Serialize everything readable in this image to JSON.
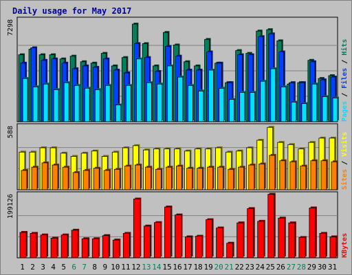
{
  "chart_data": [
    {
      "type": "bar",
      "title": "Daily usage for May 2017",
      "ylabel_parts": [
        {
          "text": "Pages",
          "color": "#00e0ff"
        },
        {
          "text": " / ",
          "color": "#000000"
        },
        {
          "text": "Files",
          "color": "#0040ff"
        },
        {
          "text": " / ",
          "color": "#000000"
        },
        {
          "text": "Hits",
          "color": "#00805c"
        }
      ],
      "ymax_label": "7298",
      "ylim": [
        0,
        7298
      ],
      "categories": [
        "1",
        "2",
        "3",
        "4",
        "5",
        "6",
        "7",
        "8",
        "9",
        "10",
        "11",
        "12",
        "13",
        "14",
        "15",
        "16",
        "17",
        "18",
        "19",
        "20",
        "21",
        "22",
        "23",
        "24",
        "25",
        "26",
        "27",
        "28",
        "29",
        "30",
        "31"
      ],
      "weekend_days": [
        "6",
        "7",
        "13",
        "14",
        "20",
        "21",
        "27",
        "28"
      ],
      "series": [
        {
          "name": "Hits",
          "color": "#00805c",
          "values": [
            4800,
            5200,
            4800,
            4800,
            4500,
            4700,
            4300,
            4200,
            4900,
            4000,
            4600,
            7000,
            5600,
            4000,
            6400,
            5500,
            4300,
            4000,
            5900,
            4200,
            2800,
            5100,
            4900,
            6500,
            6600,
            5800,
            2700,
            2800,
            4400,
            3100,
            3300
          ]
        },
        {
          "name": "Files",
          "color": "#0040ff",
          "values": [
            4200,
            5300,
            4400,
            4500,
            4200,
            3800,
            4000,
            3900,
            4500,
            3700,
            3500,
            5600,
            4600,
            3600,
            5400,
            4700,
            3700,
            3700,
            5000,
            4200,
            2800,
            4800,
            4800,
            6100,
            6300,
            5000,
            2800,
            2800,
            4300,
            3000,
            3200
          ]
        },
        {
          "name": "Pages",
          "color": "#00e0ff",
          "values": [
            3100,
            2500,
            2700,
            2300,
            2800,
            2600,
            2400,
            2300,
            2600,
            1200,
            2600,
            4500,
            2800,
            2700,
            4000,
            3200,
            2600,
            2200,
            3700,
            2400,
            1600,
            2100,
            2100,
            2900,
            3800,
            2500,
            1400,
            1300,
            2700,
            1800,
            1700
          ]
        }
      ]
    },
    {
      "type": "bar",
      "ylabel_parts": [
        {
          "text": "Sites",
          "color": "#ff8000"
        },
        {
          "text": " / ",
          "color": "#000000"
        },
        {
          "text": "Visits",
          "color": "#ffff00"
        }
      ],
      "ymax_label": "588",
      "ylim": [
        0,
        588
      ],
      "categories": [
        "1",
        "2",
        "3",
        "4",
        "5",
        "6",
        "7",
        "8",
        "9",
        "10",
        "11",
        "12",
        "13",
        "14",
        "15",
        "16",
        "17",
        "18",
        "19",
        "20",
        "21",
        "22",
        "23",
        "24",
        "25",
        "26",
        "27",
        "28",
        "29",
        "30",
        "31"
      ],
      "series": [
        {
          "name": "Visits",
          "color": "#ffff00",
          "values": [
            350,
            350,
            390,
            390,
            340,
            310,
            340,
            360,
            310,
            350,
            390,
            410,
            370,
            380,
            380,
            380,
            360,
            380,
            380,
            390,
            350,
            360,
            390,
            460,
            580,
            440,
            420,
            380,
            440,
            480,
            480
          ]
        },
        {
          "name": "Sites",
          "color": "#ff8000",
          "values": [
            180,
            210,
            250,
            230,
            210,
            160,
            180,
            200,
            180,
            190,
            220,
            230,
            210,
            190,
            210,
            220,
            200,
            200,
            210,
            210,
            190,
            210,
            230,
            240,
            320,
            270,
            260,
            220,
            270,
            270,
            260
          ]
        }
      ]
    },
    {
      "type": "bar",
      "ylabel_parts": [
        {
          "text": "KBytes",
          "color": "#ff0000"
        }
      ],
      "ymax_label": "199126",
      "ylim": [
        0,
        199126
      ],
      "categories": [
        "1",
        "2",
        "3",
        "4",
        "5",
        "6",
        "7",
        "8",
        "9",
        "10",
        "11",
        "12",
        "13",
        "14",
        "15",
        "16",
        "17",
        "18",
        "19",
        "20",
        "21",
        "22",
        "23",
        "24",
        "25",
        "26",
        "27",
        "28",
        "29",
        "30",
        "31"
      ],
      "series": [
        {
          "name": "KBytes",
          "color": "#ff0000",
          "values": [
            80000,
            77000,
            72000,
            62000,
            72000,
            87000,
            60000,
            60000,
            70000,
            56000,
            77000,
            185000,
            100000,
            111000,
            160000,
            135000,
            66000,
            68000,
            120000,
            94000,
            46000,
            110000,
            155000,
            115000,
            200000,
            125000,
            110000,
            64000,
            157000,
            77000,
            66000
          ]
        }
      ]
    }
  ]
}
